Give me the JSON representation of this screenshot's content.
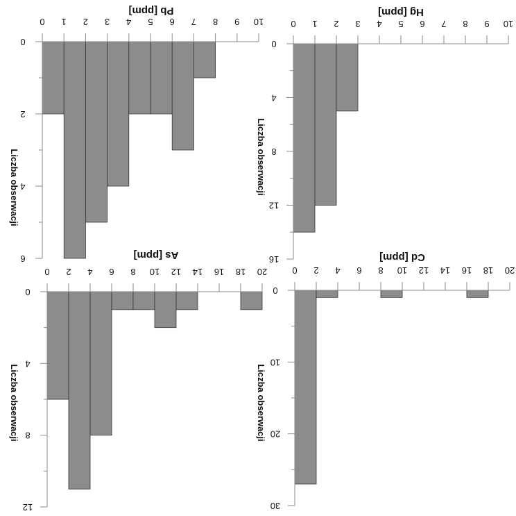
{
  "colors": {
    "bar": "#8c8c8c",
    "axis": "#8a8a8a",
    "text": "#111111"
  },
  "chart_data": [
    {
      "type": "bar",
      "title": "Pb [ppm]",
      "ylabel": "Liczba obserwacji",
      "categories": [
        "0-1",
        "1-2",
        "2-3",
        "3-4",
        "4-5",
        "5-6",
        "6-7",
        "7-8",
        "8-9",
        "9-10"
      ],
      "values": [
        2,
        6,
        5,
        4,
        2,
        2,
        3,
        1,
        0,
        0
      ],
      "x_ticks": [
        "0",
        "1",
        "2",
        "3",
        "4",
        "5",
        "6",
        "7",
        "8",
        "9",
        "10"
      ],
      "xlim": [
        0,
        10
      ],
      "y_ticks": [
        "0",
        "2",
        "4",
        "6"
      ],
      "ylim": [
        0,
        6
      ]
    },
    {
      "type": "bar",
      "title": "Hg [ppm]",
      "ylabel": "Liczba obserwacji",
      "categories": [
        "0-1",
        "1-2",
        "2-3",
        "3-4",
        "4-5",
        "5-6",
        "6-7",
        "7-8",
        "8-9",
        "9-10"
      ],
      "values": [
        14,
        12,
        5,
        0,
        0,
        0,
        0,
        0,
        0,
        0
      ],
      "x_ticks": [
        "0",
        "1",
        "2",
        "3",
        "4",
        "5",
        "6",
        "7",
        "8",
        "9",
        "10"
      ],
      "xlim": [
        0,
        10
      ],
      "y_ticks": [
        "0",
        "4",
        "8",
        "12",
        "16"
      ],
      "ylim": [
        0,
        16
      ]
    },
    {
      "type": "bar",
      "title": "As [ppm]",
      "ylabel": "Liczba obserwacji",
      "categories": [
        "0-2",
        "2-4",
        "4-6",
        "6-8",
        "8-10",
        "10-12",
        "12-14",
        "14-16",
        "16-18",
        "18-20"
      ],
      "values": [
        6,
        11,
        8,
        1,
        1,
        2,
        1,
        0,
        0,
        1
      ],
      "x_ticks": [
        "0",
        "2",
        "4",
        "6",
        "8",
        "10",
        "12",
        "14",
        "16",
        "18",
        "20"
      ],
      "xlim": [
        0,
        20
      ],
      "y_ticks": [
        "0",
        "4",
        "8",
        "12"
      ],
      "ylim": [
        0,
        12
      ]
    },
    {
      "type": "bar",
      "title": "Cd [ppm]",
      "ylabel": "Liczba obserwacji",
      "categories": [
        "0-2",
        "2-4",
        "4-6",
        "6-8",
        "8-10",
        "10-12",
        "12-14",
        "14-16",
        "16-18",
        "18-20"
      ],
      "values": [
        27,
        1,
        0,
        0,
        1,
        0,
        0,
        0,
        1,
        0
      ],
      "x_ticks": [
        "0",
        "2",
        "4",
        "6",
        "8",
        "10",
        "12",
        "14",
        "16",
        "18",
        "20"
      ],
      "xlim": [
        0,
        20
      ],
      "y_ticks": [
        "0",
        "10",
        "20",
        "30"
      ],
      "ylim": [
        0,
        30
      ]
    }
  ]
}
